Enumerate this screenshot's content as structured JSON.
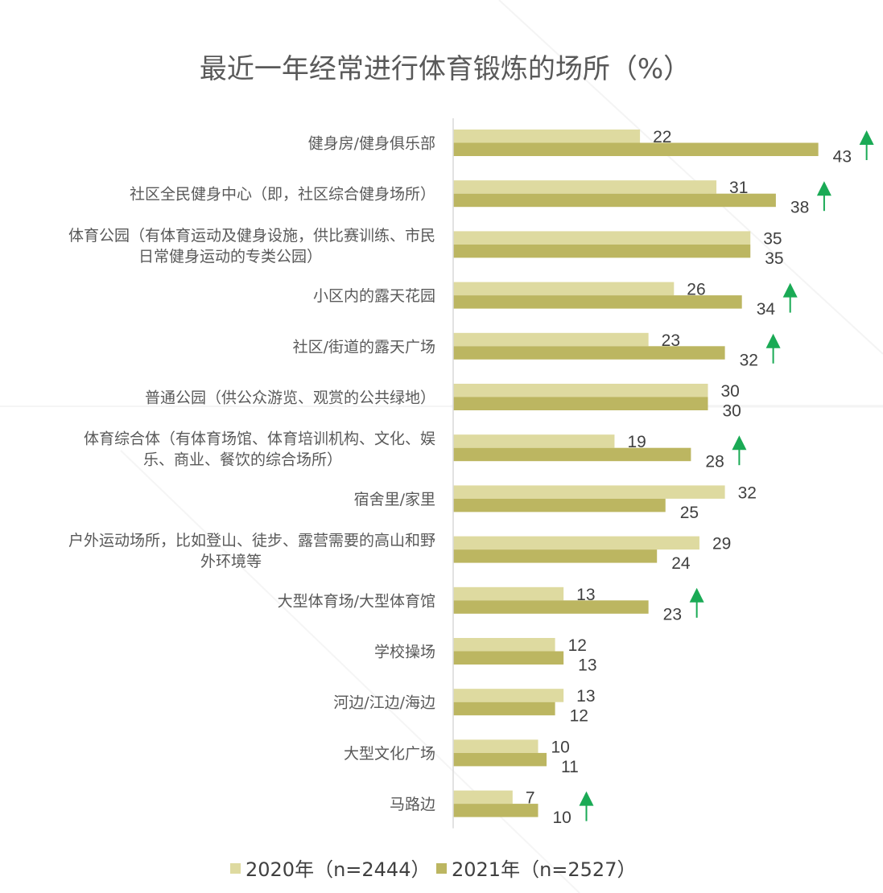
{
  "chart_data": {
    "type": "bar",
    "orientation": "horizontal",
    "title": "最近一年经常进行体育锻炼的场所（%）",
    "categories": [
      "健身房/健身俱乐部",
      "社区全民健身中心（即，社区综合健身场所）",
      "体育公园（有体育运动及健身设施，供比赛训练、市民日常健身运动的专类公园）",
      "小区内的露天花园",
      "社区/街道的露天广场",
      "普通公园（供公众游览、观赏的公共绿地）",
      "体育综合体（有体育场馆、体育培训机构、文化、娱乐、商业、餐饮的综合场所）",
      "宿舍里/家里",
      "户外运动场所，比如登山、徒步、露营需要的高山和野外环境等",
      "大型体育场/大型体育馆",
      "学校操场",
      "河边/江边/海边",
      "大型文化广场",
      "马路边"
    ],
    "category_lines": [
      [
        "健身房/健身俱乐部"
      ],
      [
        "社区全民健身中心（即，社区综合健身场所）"
      ],
      [
        "体育公园（有体育运动及健身设施，供比赛训练、市民",
        "日常健身运动的专类公园）"
      ],
      [
        "小区内的露天花园"
      ],
      [
        "社区/街道的露天广场"
      ],
      [
        "普通公园（供公众游览、观赏的公共绿地）"
      ],
      [
        "体育综合体（有体育场馆、体育培训机构、文化、娱",
        "乐、商业、餐饮的综合场所）"
      ],
      [
        "宿舍里/家里"
      ],
      [
        "户外运动场所，比如登山、徒步、露营需要的高山和野",
        "外环境等"
      ],
      [
        "大型体育场/大型体育馆"
      ],
      [
        "学校操场"
      ],
      [
        "河边/江边/海边"
      ],
      [
        "大型文化广场"
      ],
      [
        "马路边"
      ]
    ],
    "series": [
      {
        "name": "2020年（n=2444）",
        "color": "#dedaa0",
        "values": [
          22,
          31,
          35,
          26,
          23,
          30,
          19,
          32,
          29,
          13,
          12,
          13,
          10,
          7
        ]
      },
      {
        "name": "2021年（n=2527）",
        "color": "#bcb661",
        "values": [
          43,
          38,
          35,
          34,
          32,
          30,
          28,
          25,
          24,
          23,
          13,
          12,
          11,
          10
        ]
      }
    ],
    "increase_markers": [
      true,
      true,
      false,
      true,
      true,
      false,
      true,
      false,
      false,
      true,
      false,
      false,
      false,
      true
    ],
    "marker_color": "#1aaa55",
    "xlim": [
      0,
      50
    ],
    "grid": false,
    "legend_position": "bottom"
  }
}
